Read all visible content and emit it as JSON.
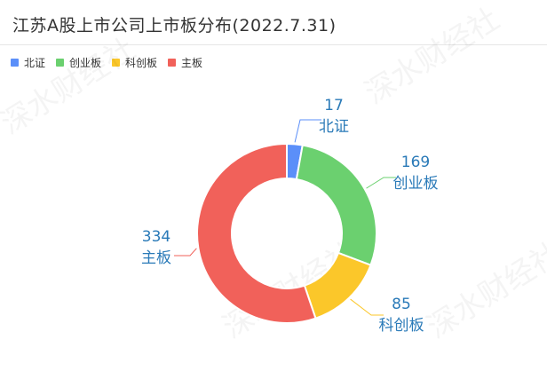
{
  "page": {
    "title": "江苏A股上市公司上市板分布(2022.7.31)",
    "watermark": "深水财经社"
  },
  "colors": {
    "北证": "#5b8ff9",
    "创业板": "#6bd06f",
    "科创板": "#fbc72a",
    "主板": "#f1615a",
    "label": "#2a7ab8"
  },
  "chart_data": {
    "type": "pie",
    "donut": true,
    "legend_position": "top-left",
    "categories": [
      "北证",
      "创业板",
      "科创板",
      "主板"
    ],
    "values": [
      17,
      169,
      85,
      334
    ]
  }
}
